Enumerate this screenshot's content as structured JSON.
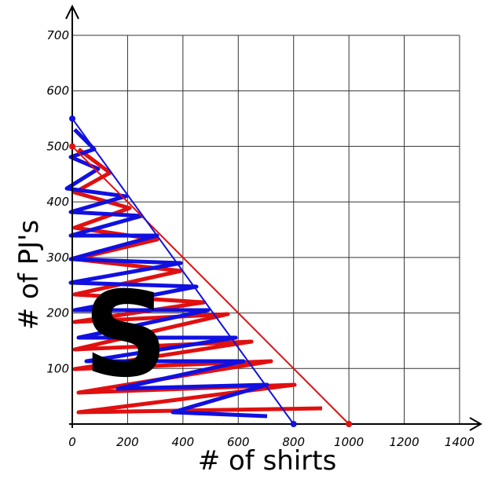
{
  "chart_data": {
    "type": "line",
    "xlabel": "# of shirts",
    "ylabel": "# of PJ's",
    "annotation": "S",
    "xlim": [
      0,
      1400
    ],
    "xticks": [
      0,
      200,
      400,
      600,
      800,
      1000,
      1200,
      1400
    ],
    "ylim": [
      0,
      700
    ],
    "yticks": [
      100,
      200,
      300,
      400,
      500,
      600,
      700
    ],
    "grid": true,
    "series": [
      {
        "color": "#e01010",
        "x": [
          0,
          1000
        ],
        "values": [
          500,
          0
        ]
      },
      {
        "color": "#1010e0",
        "x": [
          0,
          800
        ],
        "values": [
          550,
          0
        ]
      }
    ]
  }
}
